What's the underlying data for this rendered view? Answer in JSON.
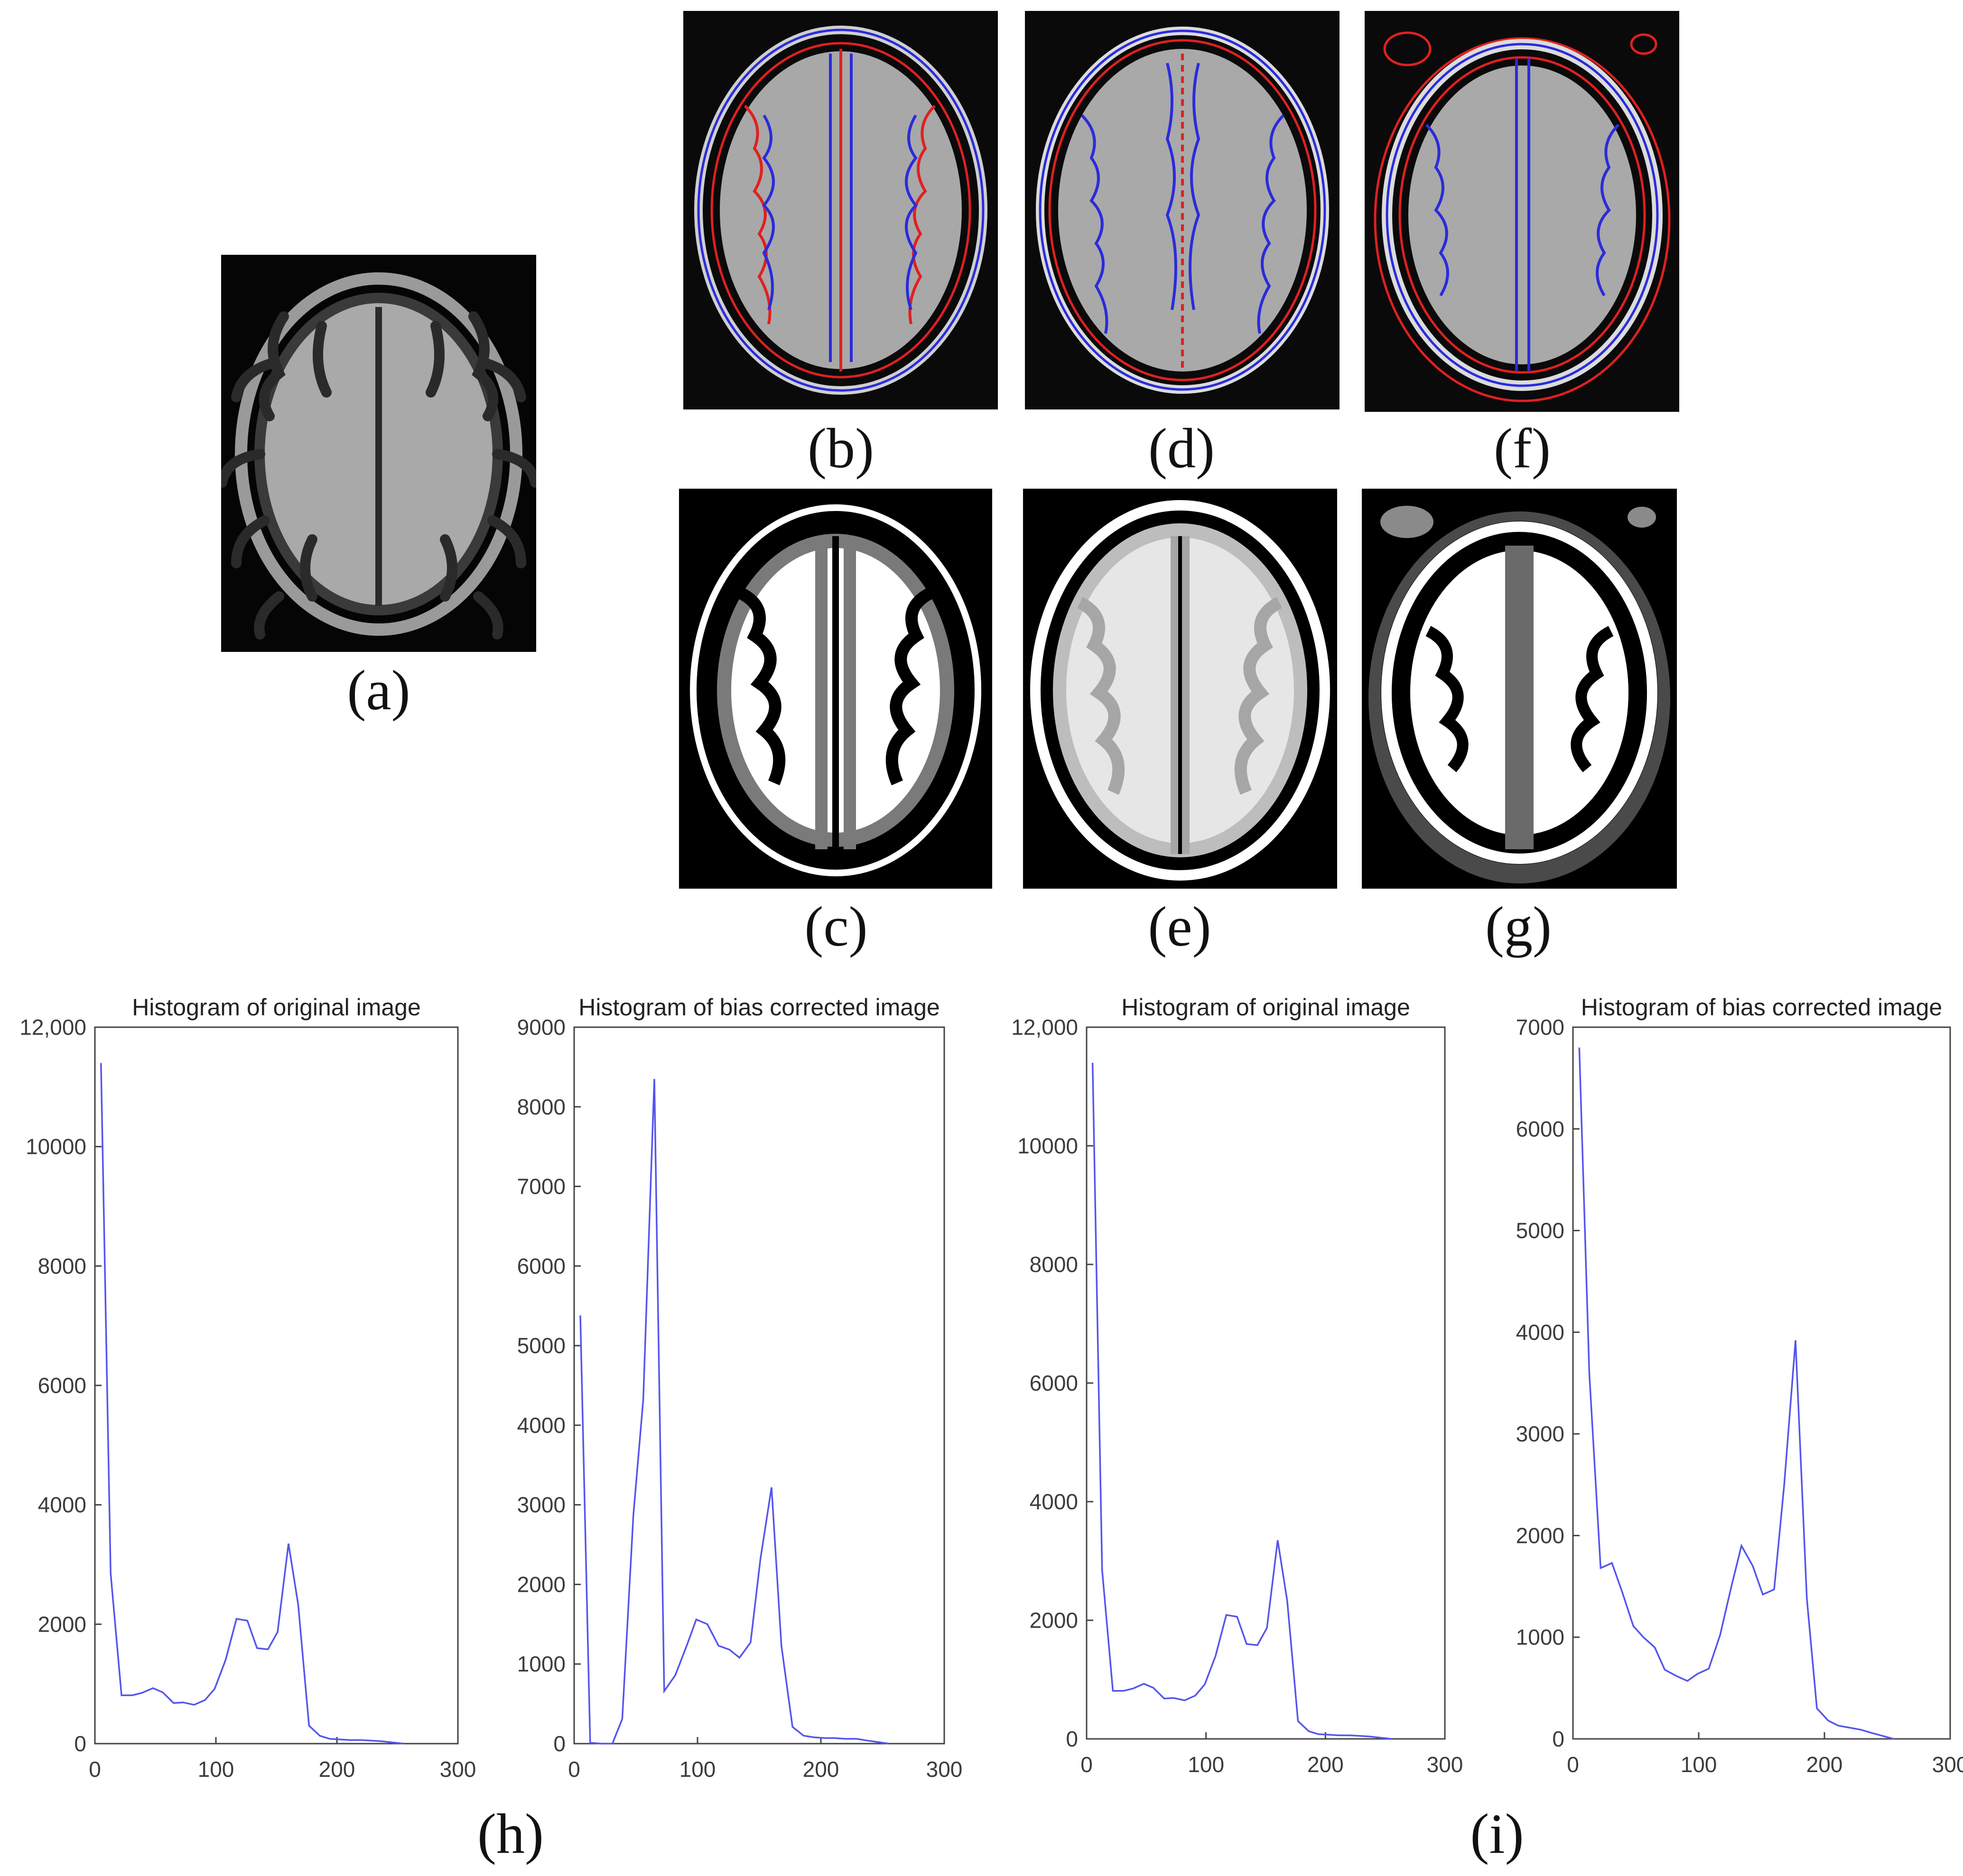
{
  "colors": {
    "red_contour": "#e02020",
    "blue_contour": "#2b2bdc",
    "hist_line": "#5555ee",
    "axis": "#444444"
  },
  "panels": {
    "a": {
      "label": "(a)"
    },
    "b": {
      "label": "(b)"
    },
    "c": {
      "label": "(c)"
    },
    "d": {
      "label": "(d)"
    },
    "e": {
      "label": "(e)"
    },
    "f": {
      "label": "(f)"
    },
    "g": {
      "label": "(g)"
    },
    "h": {
      "label": "(h)"
    },
    "i": {
      "label": "(i)"
    }
  },
  "chart_data": [
    {
      "type": "line",
      "title": "Histogram of original image",
      "xlim": [
        0,
        300
      ],
      "ylim": [
        0,
        12000
      ],
      "xticks": [
        "0",
        "100",
        "200",
        "300"
      ],
      "yticks": [
        "0",
        "2000",
        "4000",
        "6000",
        "8000",
        "10000",
        "12,000"
      ],
      "x": [
        5,
        13,
        22,
        31,
        39,
        48,
        56,
        65,
        73,
        82,
        91,
        99,
        108,
        117,
        126,
        134,
        143,
        151,
        160,
        168,
        177,
        186,
        194,
        203,
        211,
        220,
        229,
        237,
        246,
        255
      ],
      "y": [
        11400,
        2850,
        810,
        810,
        850,
        930,
        860,
        680,
        690,
        650,
        730,
        920,
        1400,
        2090,
        2060,
        1600,
        1580,
        1870,
        3350,
        2330,
        300,
        130,
        80,
        70,
        60,
        60,
        50,
        40,
        20,
        0
      ]
    },
    {
      "type": "line",
      "title": "Histogram of bias corrected image",
      "xlim": [
        0,
        300
      ],
      "ylim": [
        0,
        9000
      ],
      "xticks": [
        "0",
        "100",
        "200",
        "300"
      ],
      "yticks": [
        "0",
        "1000",
        "2000",
        "3000",
        "4000",
        "5000",
        "6000",
        "7000",
        "8000",
        "9000"
      ],
      "x": [
        5,
        13,
        22,
        31,
        39,
        48,
        56,
        65,
        73,
        82,
        91,
        99,
        108,
        117,
        126,
        134,
        143,
        151,
        160,
        168,
        177,
        186,
        194,
        203,
        211,
        220,
        229,
        237,
        246,
        255
      ],
      "y": [
        5380,
        10,
        0,
        0,
        310,
        2870,
        4320,
        8350,
        660,
        860,
        1220,
        1560,
        1500,
        1230,
        1180,
        1080,
        1270,
        2320,
        3220,
        1230,
        210,
        100,
        80,
        70,
        70,
        60,
        60,
        40,
        20,
        0
      ]
    },
    {
      "type": "line",
      "title": "Histogram of original image",
      "xlim": [
        0,
        300
      ],
      "ylim": [
        0,
        12000
      ],
      "xticks": [
        "0",
        "100",
        "200",
        "300"
      ],
      "yticks": [
        "0",
        "2000",
        "4000",
        "6000",
        "8000",
        "10000",
        "12,000"
      ],
      "x": [
        5,
        13,
        22,
        31,
        39,
        48,
        56,
        65,
        73,
        82,
        91,
        99,
        108,
        117,
        126,
        134,
        143,
        151,
        160,
        168,
        177,
        186,
        194,
        203,
        211,
        220,
        229,
        237,
        246,
        255
      ],
      "y": [
        11400,
        2850,
        810,
        810,
        850,
        930,
        860,
        680,
        690,
        650,
        730,
        920,
        1400,
        2090,
        2060,
        1600,
        1580,
        1870,
        3350,
        2330,
        300,
        130,
        80,
        70,
        60,
        60,
        50,
        40,
        20,
        0
      ]
    },
    {
      "type": "line",
      "title": "Histogram of bias corrected image",
      "xlim": [
        0,
        300
      ],
      "ylim": [
        0,
        7000
      ],
      "xticks": [
        "0",
        "100",
        "200",
        "300"
      ],
      "yticks": [
        "0",
        "1000",
        "2000",
        "3000",
        "4000",
        "5000",
        "6000",
        "7000"
      ],
      "x": [
        5,
        13,
        22,
        31,
        39,
        48,
        56,
        65,
        73,
        82,
        91,
        99,
        108,
        117,
        126,
        134,
        143,
        151,
        160,
        168,
        177,
        186,
        194,
        203,
        211,
        220,
        229,
        237,
        246,
        255
      ],
      "y": [
        6800,
        3600,
        1680,
        1730,
        1450,
        1110,
        1000,
        900,
        680,
        620,
        570,
        640,
        690,
        1020,
        1500,
        1900,
        1700,
        1420,
        1470,
        2500,
        3920,
        1380,
        300,
        180,
        130,
        110,
        90,
        60,
        30,
        0
      ]
    }
  ]
}
